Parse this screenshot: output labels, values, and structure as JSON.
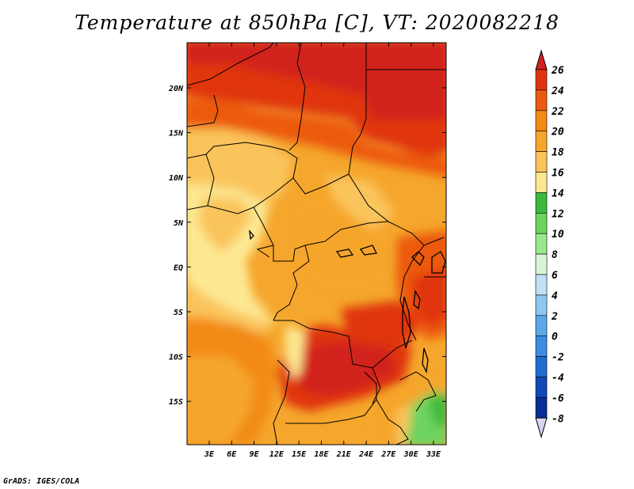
{
  "title": "Temperature at 850hPa [C], VT: 2020082218",
  "footer": "GrADS: IGES/COLA",
  "map": {
    "region": "Central Africa",
    "x_ticks": [
      "3E",
      "6E",
      "9E",
      "12E",
      "15E",
      "18E",
      "21E",
      "24E",
      "27E",
      "30E",
      "33E"
    ],
    "y_ticks": [
      "20N",
      "15N",
      "10N",
      "5N",
      "EQ",
      "5S",
      "10S",
      "15S"
    ]
  },
  "colorbar": {
    "labels": [
      "26",
      "24",
      "22",
      "20",
      "18",
      "16",
      "14",
      "12",
      "10",
      "8",
      "6",
      "4",
      "2",
      "0",
      "-2",
      "-4",
      "-6",
      "-8"
    ],
    "colors": {
      "above_26": "#d2211e",
      "24_26": "#e0340f",
      "22_24": "#ec5a0f",
      "20_22": "#f28a14",
      "18_20": "#f5a62c",
      "16_18": "#fac45b",
      "14_16": "#fde892",
      "12_14": "#3cba3c",
      "10_12": "#6ed35e",
      "8_10": "#9ae88e",
      "6_8": "#d8f5da",
      "4_6": "#bfe0f5",
      "2_4": "#8ec7f0",
      "0_2": "#5aa8e8",
      "m2_0": "#3a8de0",
      "m4_m2": "#1f6cd2",
      "m6_m4": "#1048b8",
      "m8_m6": "#0a2c96",
      "below_m8": "#d6d6f0"
    }
  }
}
